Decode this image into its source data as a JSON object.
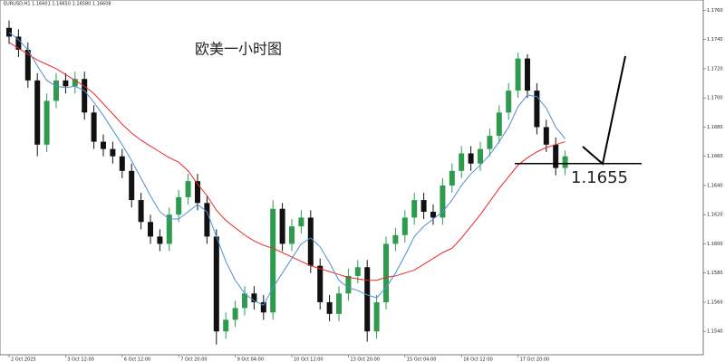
{
  "chart_data": {
    "type": "candlestick",
    "title": "欧美一小时图",
    "symbol_info": "EURUSD,H1 1.16601 1.16650 1.16580 1.16608",
    "level": 1.1655,
    "up_color": "#2e9b4f",
    "down_color": "#111111",
    "categories": [
      "2 Oct 2025",
      null,
      null,
      null,
      null,
      null,
      "3 Oct 12:00",
      null,
      null,
      null,
      null,
      null,
      "6 Oct 12:00",
      null,
      null,
      null,
      null,
      null,
      "7 Oct 20:00",
      null,
      null,
      null,
      null,
      null,
      "9 Oct 04:00",
      null,
      null,
      null,
      null,
      null,
      "10 Oct 12:00",
      null,
      null,
      null,
      null,
      null,
      "13 Oct 20:00",
      null,
      null,
      null,
      null,
      null,
      "15 Oct 04:00",
      null,
      null,
      null,
      null,
      null,
      "16 Oct 12:00",
      null,
      null,
      null,
      null,
      null,
      "17 Oct 20:00",
      null,
      null,
      null,
      null,
      null
    ],
    "open": [
      1.1748,
      1.1742,
      1.1733,
      1.1712,
      1.1668,
      1.1698,
      1.1712,
      1.1708,
      1.1713,
      1.169,
      1.167,
      1.1665,
      1.166,
      1.165,
      1.163,
      1.1615,
      1.1605,
      1.16,
      1.162,
      1.1632,
      1.1643,
      1.1628,
      1.1605,
      1.154,
      1.1548,
      1.1556,
      1.1566,
      1.156,
      1.1553,
      1.1624,
      1.16,
      1.1612,
      1.1618,
      1.1585,
      1.156,
      1.1552,
      1.1566,
      1.1578,
      1.1584,
      1.154,
      1.156,
      1.16,
      1.1606,
      1.1618,
      1.163,
      1.1622,
      1.1618,
      1.164,
      1.165,
      1.1662,
      1.1655,
      1.1665,
      1.1674,
      1.169,
      1.1705,
      1.1727,
      1.1705,
      1.168,
      1.1668,
      1.1652
    ],
    "high": [
      1.1753,
      1.1747,
      1.1738,
      1.1717,
      1.1703,
      1.1717,
      1.1717,
      1.1718,
      1.1718,
      1.1695,
      1.1675,
      1.167,
      1.1665,
      1.1655,
      1.1635,
      1.162,
      1.161,
      1.1625,
      1.1637,
      1.1648,
      1.1648,
      1.1633,
      1.161,
      1.1553,
      1.1561,
      1.1571,
      1.1571,
      1.1565,
      1.163,
      1.1628,
      1.1617,
      1.1623,
      1.1623,
      1.159,
      1.1565,
      1.1571,
      1.1583,
      1.1589,
      1.1589,
      1.1565,
      1.1605,
      1.1611,
      1.1623,
      1.1635,
      1.1635,
      1.1627,
      1.1645,
      1.1655,
      1.1667,
      1.1667,
      1.167,
      1.1679,
      1.1695,
      1.171,
      1.1731,
      1.173,
      1.171,
      1.1685,
      1.1673,
      1.1664
    ],
    "low": [
      1.1737,
      1.1728,
      1.1707,
      1.166,
      1.1663,
      1.1693,
      1.1703,
      1.1703,
      1.1685,
      1.1665,
      1.166,
      1.1655,
      1.1645,
      1.1625,
      1.161,
      1.16,
      1.1595,
      1.1595,
      1.1615,
      1.1627,
      1.1623,
      1.16,
      1.1531,
      1.1535,
      1.1543,
      1.1551,
      1.1555,
      1.1548,
      1.1548,
      1.1595,
      1.1595,
      1.1607,
      1.158,
      1.1555,
      1.1547,
      1.1547,
      1.1561,
      1.1573,
      1.1533,
      1.1535,
      1.1555,
      1.1595,
      1.1601,
      1.1613,
      1.1617,
      1.1613,
      1.1613,
      1.1635,
      1.1645,
      1.165,
      1.165,
      1.166,
      1.1669,
      1.1685,
      1.17,
      1.17,
      1.1675,
      1.1663,
      1.1647,
      1.1647
    ],
    "close": [
      1.1742,
      1.1733,
      1.1712,
      1.1668,
      1.1698,
      1.1712,
      1.1708,
      1.1713,
      1.169,
      1.167,
      1.1665,
      1.166,
      1.165,
      1.163,
      1.1615,
      1.1605,
      1.16,
      1.162,
      1.1632,
      1.1643,
      1.1628,
      1.1605,
      1.154,
      1.1548,
      1.1556,
      1.1566,
      1.156,
      1.1553,
      1.1624,
      1.16,
      1.1612,
      1.1618,
      1.1585,
      1.156,
      1.1552,
      1.1566,
      1.1578,
      1.1584,
      1.154,
      1.156,
      1.16,
      1.1606,
      1.1618,
      1.163,
      1.1622,
      1.1618,
      1.164,
      1.165,
      1.1662,
      1.1655,
      1.1665,
      1.1674,
      1.169,
      1.1705,
      1.1727,
      1.1705,
      1.168,
      1.1668,
      1.1652,
      1.166
    ],
    "series": [
      {
        "color": "#e8282b",
        "values": [
          1.1738,
          1.1734,
          1.173,
          1.1726,
          1.1723,
          1.172,
          1.1716,
          1.1712,
          1.1708,
          1.1703,
          1.1696,
          1.1689,
          1.1682,
          1.1676,
          1.1671,
          1.1667,
          1.1663,
          1.1659,
          1.1656,
          1.165,
          1.1641,
          1.1633,
          1.1623,
          1.1616,
          1.1611,
          1.1606,
          1.1602,
          1.1599,
          1.1597,
          1.1594,
          1.1591,
          1.1588,
          1.1585,
          1.1583,
          1.1581,
          1.1579,
          1.1577,
          1.1576,
          1.1575,
          1.1575,
          1.1577,
          1.1578,
          1.158,
          1.1582,
          1.1586,
          1.159,
          1.1594,
          1.1597,
          1.1604,
          1.1612,
          1.162,
          1.1629,
          1.1638,
          1.1646,
          1.1654,
          1.1659,
          1.1663,
          1.1666,
          1.1668,
          1.167
        ]
      },
      {
        "color": "#4f8fd0",
        "values": [
          1.1745,
          1.174,
          1.1733,
          1.1722,
          1.1712,
          1.1708,
          1.1707,
          1.1708,
          1.1705,
          1.1697,
          1.1688,
          1.1678,
          1.1668,
          1.1657,
          1.1645,
          1.1633,
          1.1622,
          1.1617,
          1.1617,
          1.1622,
          1.1627,
          1.1622,
          1.1605,
          1.1588,
          1.1575,
          1.1566,
          1.1561,
          1.1558,
          1.157,
          1.158,
          1.159,
          1.16,
          1.1604,
          1.1598,
          1.1587,
          1.1575,
          1.157,
          1.1568,
          1.1565,
          1.1563,
          1.157,
          1.158,
          1.1592,
          1.1605,
          1.1612,
          1.1617,
          1.1622,
          1.163,
          1.164,
          1.1648,
          1.1654,
          1.1661,
          1.167,
          1.168,
          1.1694,
          1.1702,
          1.1701,
          1.1693,
          1.168,
          1.1672
        ]
      }
    ],
    "ylim": [
      1.1524,
      1.1764
    ],
    "yticks": [
      {
        "value": 1.154,
        "label": "1.1540"
      },
      {
        "value": 1.156,
        "label": "1.1560"
      },
      {
        "value": 1.158,
        "label": "1.1580"
      },
      {
        "value": 1.16,
        "label": "1.1600"
      },
      {
        "value": 1.162,
        "label": "1.1620"
      },
      {
        "value": 1.164,
        "label": "1.1640"
      },
      {
        "value": 1.166,
        "label": "1.1660"
      },
      {
        "value": 1.168,
        "label": "1.1680"
      },
      {
        "value": 1.17,
        "label": "1.1700"
      },
      {
        "value": 1.172,
        "label": "1.1720"
      },
      {
        "value": 1.174,
        "label": "1.1740"
      },
      {
        "value": 1.176,
        "label": "1.1760"
      }
    ]
  }
}
